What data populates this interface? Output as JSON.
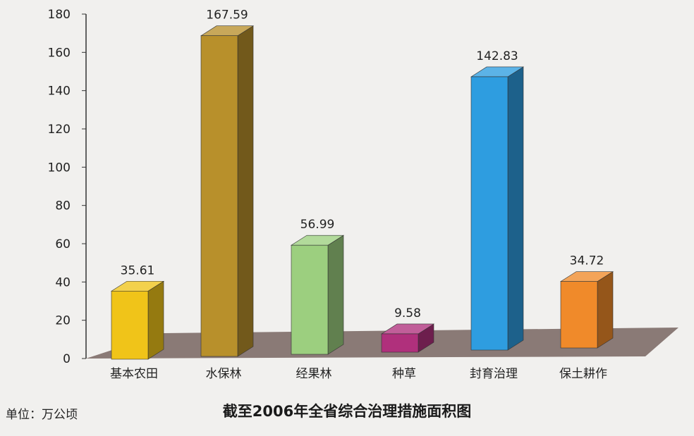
{
  "chart_data": {
    "type": "bar",
    "title": "截至2006年全省综合治理措施面积图",
    "unit_label": "单位：万公顷",
    "categories": [
      "基本农田",
      "水保林",
      "经果林",
      "种草",
      "封育治理",
      "保土耕作"
    ],
    "values": [
      35.61,
      167.59,
      56.99,
      9.58,
      142.83,
      34.72
    ],
    "value_labels": [
      "35.61",
      "167.59",
      "56.99",
      "9.58",
      "142.83",
      "34.72"
    ],
    "y_ticks": [
      "0",
      "20",
      "40",
      "60",
      "80",
      "100",
      "120",
      "140",
      "160",
      "180"
    ],
    "ylim": [
      0,
      180
    ],
    "style": "3d",
    "grid": false,
    "legend": "none",
    "colors": {
      "bars": [
        "#f0c419",
        "#b8902b",
        "#9ccf7f",
        "#b0307c",
        "#2e9de0",
        "#f08a2a"
      ],
      "floor": "#8a7a76",
      "axis": "#333333",
      "background": "#f1f0ee"
    }
  }
}
